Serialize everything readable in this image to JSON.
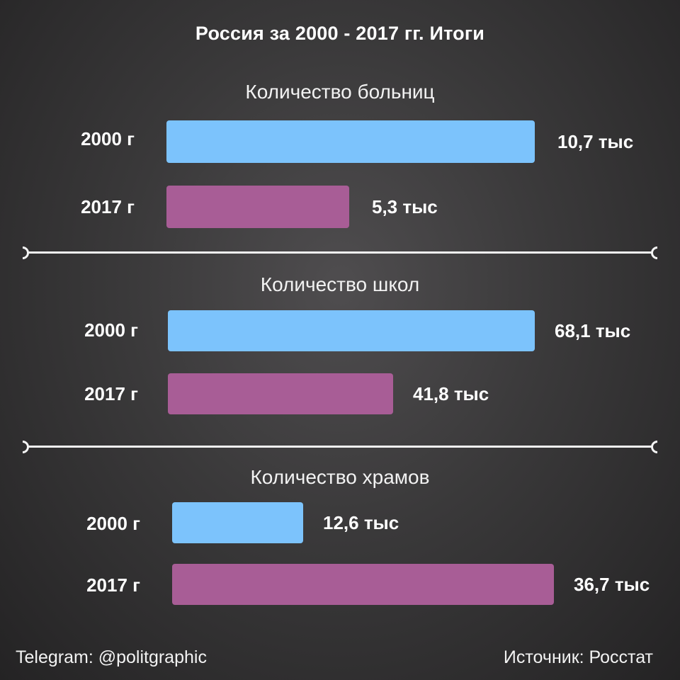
{
  "title": "Россия за 2000 - 2017 гг. Итоги",
  "chart_data": [
    {
      "type": "bar",
      "title": "Количество больниц",
      "categories": [
        "2000 г",
        "2017 г"
      ],
      "values": [
        10.7,
        5.3
      ],
      "value_labels": [
        "10,7 тыс",
        "5,3 тыс"
      ],
      "unit": "тыс",
      "colors": [
        "#7cc3fc",
        "#a85d96"
      ]
    },
    {
      "type": "bar",
      "title": "Количество школ",
      "categories": [
        "2000 г",
        "2017 г"
      ],
      "values": [
        68.1,
        41.8
      ],
      "value_labels": [
        "68,1 тыс",
        "41,8 тыс"
      ],
      "unit": "тыс",
      "colors": [
        "#7cc3fc",
        "#a85d96"
      ]
    },
    {
      "type": "bar",
      "title": "Количество храмов",
      "categories": [
        "2000 г",
        "2017 г"
      ],
      "values": [
        12.6,
        36.7
      ],
      "value_labels": [
        "12,6 тыс",
        "36,7 тыс"
      ],
      "unit": "тыс",
      "colors": [
        "#7cc3fc",
        "#a85d96"
      ]
    }
  ],
  "footer": {
    "left": "Telegram: @politgraphic",
    "right": "Источник: Росстат"
  }
}
